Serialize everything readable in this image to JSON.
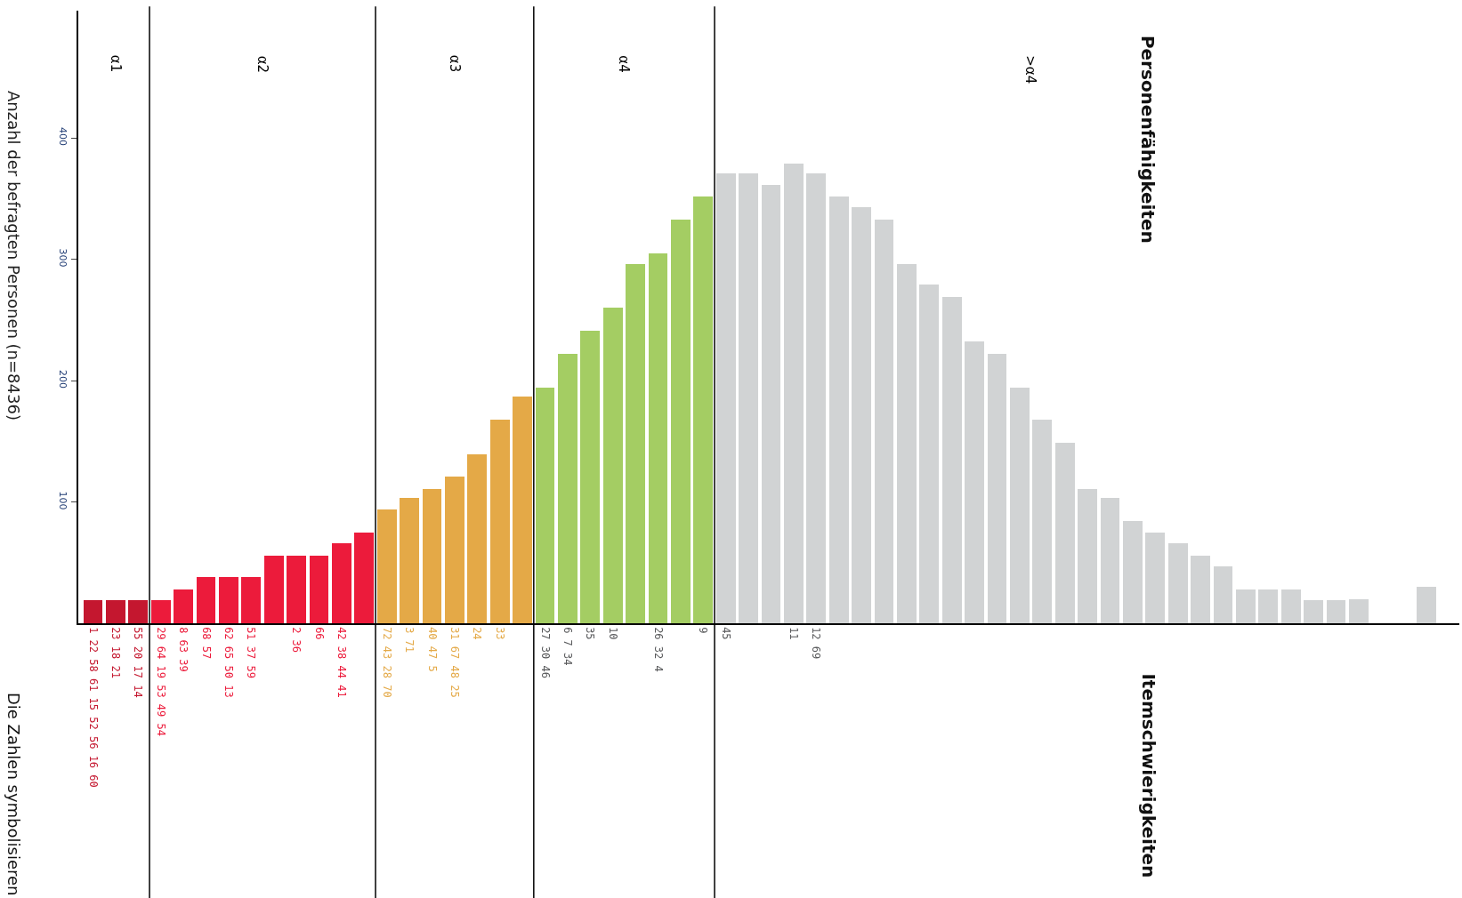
{
  "chart_data": {
    "type": "bar",
    "ylabel": "Anzahl der befragten Personen (n=8436)",
    "annotations": [
      "α1",
      "α2",
      "α3",
      "α4",
      ">α4",
      "Personenfähigkeiten",
      "Itemschwierigkeiten",
      "Die Zahlen symbolisieren"
    ],
    "categories": [
      "1 22 58 61 15 52 56 16 60",
      "23 18 21",
      "55 20 17 14",
      "29 64 19 53 49 54",
      "8 63 39",
      "68 57",
      "62 65 50 13",
      "51 37 59",
      null,
      "2 36",
      "66",
      "42 38 44 41",
      null,
      "72 43 28 70",
      "3 71",
      "40 47 5",
      "31 67 48 25",
      "24",
      "33",
      null,
      "27 30 46",
      "6 7 34",
      "35",
      "10",
      null,
      "26 32 4",
      null,
      "9",
      "45",
      null,
      null,
      "11",
      "12 69",
      null,
      null,
      null,
      null,
      null,
      null,
      null,
      null,
      null,
      null,
      null,
      null,
      null,
      null,
      null,
      null,
      null,
      null,
      null,
      null,
      null,
      null,
      null,
      null,
      null,
      null,
      null
    ],
    "series": [
      {
        "color": "#c4172f",
        "values": [
          19,
          19,
          19,
          null,
          null,
          null,
          null,
          null,
          null,
          null,
          null,
          null,
          null,
          null,
          null,
          null,
          null,
          null,
          null,
          null,
          null,
          null,
          null,
          null,
          null,
          null,
          null,
          null,
          null,
          null,
          null,
          null,
          null,
          null,
          null,
          null,
          null,
          null,
          null,
          null,
          null,
          null,
          null,
          null,
          null,
          null,
          null,
          null,
          null,
          null,
          null,
          null,
          null,
          null,
          null,
          null,
          null,
          null,
          null,
          null
        ]
      },
      {
        "color": "#ec1b3b",
        "values": [
          null,
          null,
          null,
          19,
          28,
          38,
          38,
          38,
          56,
          56,
          56,
          66,
          75,
          null,
          null,
          null,
          null,
          null,
          null,
          null,
          null,
          null,
          null,
          null,
          null,
          null,
          null,
          null,
          null,
          null,
          null,
          null,
          null,
          null,
          null,
          null,
          null,
          null,
          null,
          null,
          null,
          null,
          null,
          null,
          null,
          null,
          null,
          null,
          null,
          null,
          null,
          null,
          null,
          null,
          null,
          null,
          null,
          null,
          null,
          null
        ]
      },
      {
        "color": "#e4a947",
        "values": [
          null,
          null,
          null,
          null,
          null,
          null,
          null,
          null,
          null,
          null,
          null,
          null,
          null,
          94,
          103,
          111,
          121,
          139,
          168,
          187,
          null,
          null,
          null,
          null,
          null,
          null,
          null,
          null,
          null,
          null,
          null,
          null,
          null,
          null,
          null,
          null,
          null,
          null,
          null,
          null,
          null,
          null,
          null,
          null,
          null,
          null,
          null,
          null,
          null,
          null,
          null,
          null,
          null,
          null,
          null,
          null,
          null,
          null,
          null,
          null
        ]
      },
      {
        "color": "#a4cd63",
        "values": [
          null,
          null,
          null,
          null,
          null,
          null,
          null,
          null,
          null,
          null,
          null,
          null,
          null,
          null,
          null,
          null,
          null,
          null,
          null,
          null,
          194,
          222,
          241,
          260,
          296,
          305,
          333,
          352,
          null,
          null,
          null,
          null,
          null,
          null,
          null,
          null,
          null,
          null,
          null,
          null,
          null,
          null,
          null,
          null,
          null,
          null,
          null,
          null,
          null,
          null,
          null,
          null,
          null,
          null,
          null,
          null,
          null,
          null,
          null,
          null
        ]
      },
      {
        "color": "#d1d3d4",
        "values": [
          null,
          null,
          null,
          null,
          null,
          null,
          null,
          null,
          null,
          null,
          null,
          null,
          null,
          null,
          null,
          null,
          null,
          null,
          null,
          null,
          null,
          null,
          null,
          null,
          null,
          null,
          null,
          null,
          371,
          371,
          361,
          379,
          371,
          352,
          343,
          333,
          296,
          279,
          269,
          232,
          222,
          194,
          168,
          149,
          111,
          103,
          84,
          75,
          66,
          56,
          47,
          28,
          28,
          28,
          19,
          19,
          20,
          null,
          null,
          30
        ]
      }
    ],
    "ylim": [
      0,
      505
    ],
    "yticks": [
      100,
      200,
      300,
      400
    ]
  }
}
